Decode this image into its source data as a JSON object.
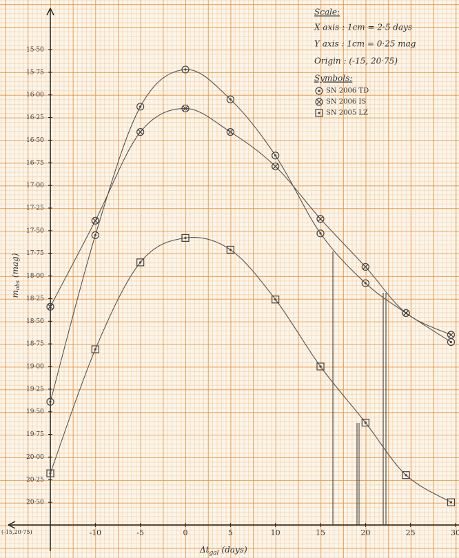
{
  "chart_data": {
    "type": "line",
    "origin_label": "(-15,20·75)",
    "xlabel": "Δt",
    "xlabel_sub": "gal",
    "xlabel_unit": "(days)",
    "ylabel": "m",
    "ylabel_sub": "obs",
    "ylabel_unit": "(mag)",
    "scale_title": "Scale:",
    "scale_lines": [
      "X axis : 1cm = 2·5 days",
      "Y axis : 1cm = 0·25 mag",
      "Origin : (-15, 20·75)"
    ],
    "legend_title": "Symbols:",
    "x": [
      -15,
      -10,
      -5,
      0,
      5,
      10,
      15,
      20,
      24.5,
      29.5
    ],
    "series": [
      {
        "name": "SN 2006 TD",
        "marker": "dot",
        "color": "#444",
        "values": [
          19.39,
          17.55,
          16.13,
          15.72,
          16.05,
          16.67,
          17.53,
          18.08,
          18.41,
          18.73
        ]
      },
      {
        "name": "SN 2006 IS",
        "marker": "cross",
        "color": "#444",
        "values": [
          18.34,
          17.39,
          16.41,
          16.15,
          16.41,
          16.79,
          17.37,
          17.9,
          18.41,
          18.65
        ]
      },
      {
        "name": "SN 2005 LZ",
        "marker": "square",
        "color": "#444",
        "values": [
          20.18,
          18.81,
          17.85,
          17.58,
          17.71,
          18.26,
          19.0,
          19.62,
          20.2,
          20.5
        ]
      }
    ],
    "xlim": [
      -15,
      30
    ],
    "ylim": [
      20.75,
      15.5
    ],
    "xticks": [
      -10,
      -5,
      0,
      5,
      10,
      15,
      20,
      25,
      30
    ],
    "yticks": [
      {
        "value": 15.5,
        "label": "15·50"
      },
      {
        "value": 15.75,
        "label": "15·75"
      },
      {
        "value": 16,
        "label": "16·00"
      },
      {
        "value": 16.25,
        "label": "16·25"
      },
      {
        "value": 16.5,
        "label": "16·50"
      },
      {
        "value": 16.75,
        "label": "16·75"
      },
      {
        "value": 17,
        "label": "17·00"
      },
      {
        "value": 17.25,
        "label": "17·25"
      },
      {
        "value": 17.5,
        "label": "17·50"
      },
      {
        "value": 17.75,
        "label": "17·75"
      },
      {
        "value": 18,
        "label": "18·00"
      },
      {
        "value": 18.25,
        "label": "18·25"
      },
      {
        "value": 18.5,
        "label": "18·50"
      },
      {
        "value": 18.75,
        "label": "18·75"
      },
      {
        "value": 19,
        "label": "19·00"
      },
      {
        "value": 19.25,
        "label": "19·25"
      },
      {
        "value": 19.5,
        "label": "19·50"
      },
      {
        "value": 19.75,
        "label": "19·75"
      },
      {
        "value": 20,
        "label": "20·00"
      },
      {
        "value": 20.25,
        "label": "20·25"
      },
      {
        "value": 20.5,
        "label": "20·50"
      }
    ]
  }
}
